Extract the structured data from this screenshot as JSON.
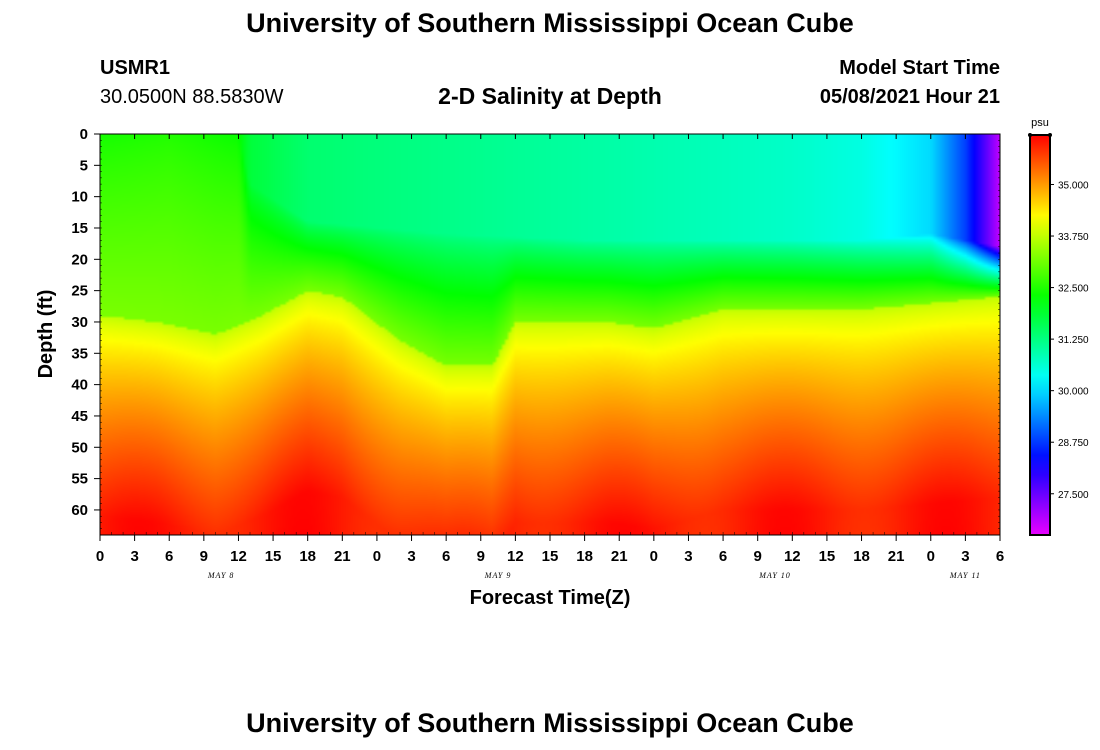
{
  "header": {
    "title_top": "University of Southern Mississippi Ocean Cube",
    "station_id": "USMR1",
    "station_coords": "30.0500N  88.5830W",
    "plot_title": "2-D Salinity at Depth",
    "model_start_label": "Model Start Time",
    "model_start_value": "05/08/2021 Hour 21",
    "title_bottom": "University of Southern Mississippi Ocean Cube"
  },
  "chart_data": {
    "type": "heatmap",
    "variable": "Salinity",
    "ylabel": "Depth (ft)",
    "xlabel": "Forecast Time(Z)",
    "y_ticks": [
      0,
      5,
      10,
      15,
      20,
      25,
      30,
      35,
      40,
      45,
      50,
      55,
      60
    ],
    "y_range": [
      0,
      64
    ],
    "x_hour_labels": [
      "0",
      "3",
      "6",
      "9",
      "12",
      "15",
      "18",
      "21",
      "0",
      "3",
      "6",
      "9",
      "12",
      "15",
      "18",
      "21",
      "0",
      "3",
      "6",
      "9",
      "12",
      "15",
      "18",
      "21",
      "0",
      "3",
      "6"
    ],
    "x_range_hours": [
      0,
      78
    ],
    "day_labels": [
      {
        "label": "MAY 8",
        "hour": 10.5
      },
      {
        "label": "MAY 9",
        "hour": 34.5
      },
      {
        "label": "MAY 10",
        "hour": 58.5
      },
      {
        "label": "MAY 11",
        "hour": 75
      }
    ],
    "colorbar": {
      "unit": "psu",
      "range": [
        26.5,
        36.2
      ],
      "ticks": [
        "35.000",
        "33.750",
        "32.500",
        "31.250",
        "30.000",
        "28.750",
        "27.500"
      ],
      "tick_values": [
        35.0,
        33.75,
        32.5,
        31.25,
        30.0,
        28.75,
        27.5
      ]
    },
    "surface_layer_salinity_hours": [
      0,
      6,
      12,
      13,
      18,
      24,
      30,
      36,
      42,
      48,
      54,
      60,
      66,
      72,
      75,
      78
    ],
    "surface_layer_salinity_values": [
      32.4,
      32.5,
      32.3,
      31.8,
      31.4,
      31.3,
      31.2,
      31.1,
      31.0,
      30.9,
      30.8,
      30.7,
      30.5,
      30.0,
      28.8,
      26.8
    ],
    "halocline_depth_ft_hours": [
      0,
      5,
      10,
      14,
      18,
      21,
      26,
      30,
      34,
      36,
      40,
      44,
      48,
      54,
      60,
      66,
      72,
      78
    ],
    "halocline_depth_ft_values": [
      29,
      30,
      32,
      29,
      25,
      26,
      33,
      37,
      37,
      30,
      30,
      30,
      31,
      28,
      28,
      28,
      27,
      26
    ],
    "upper_boundary_depth_ft_hours": [
      0,
      12,
      13,
      18,
      30,
      42,
      54,
      66,
      72,
      78
    ],
    "upper_boundary_depth_ft_values": [
      0,
      0,
      8,
      14,
      16,
      17,
      17,
      17,
      16,
      18
    ]
  }
}
